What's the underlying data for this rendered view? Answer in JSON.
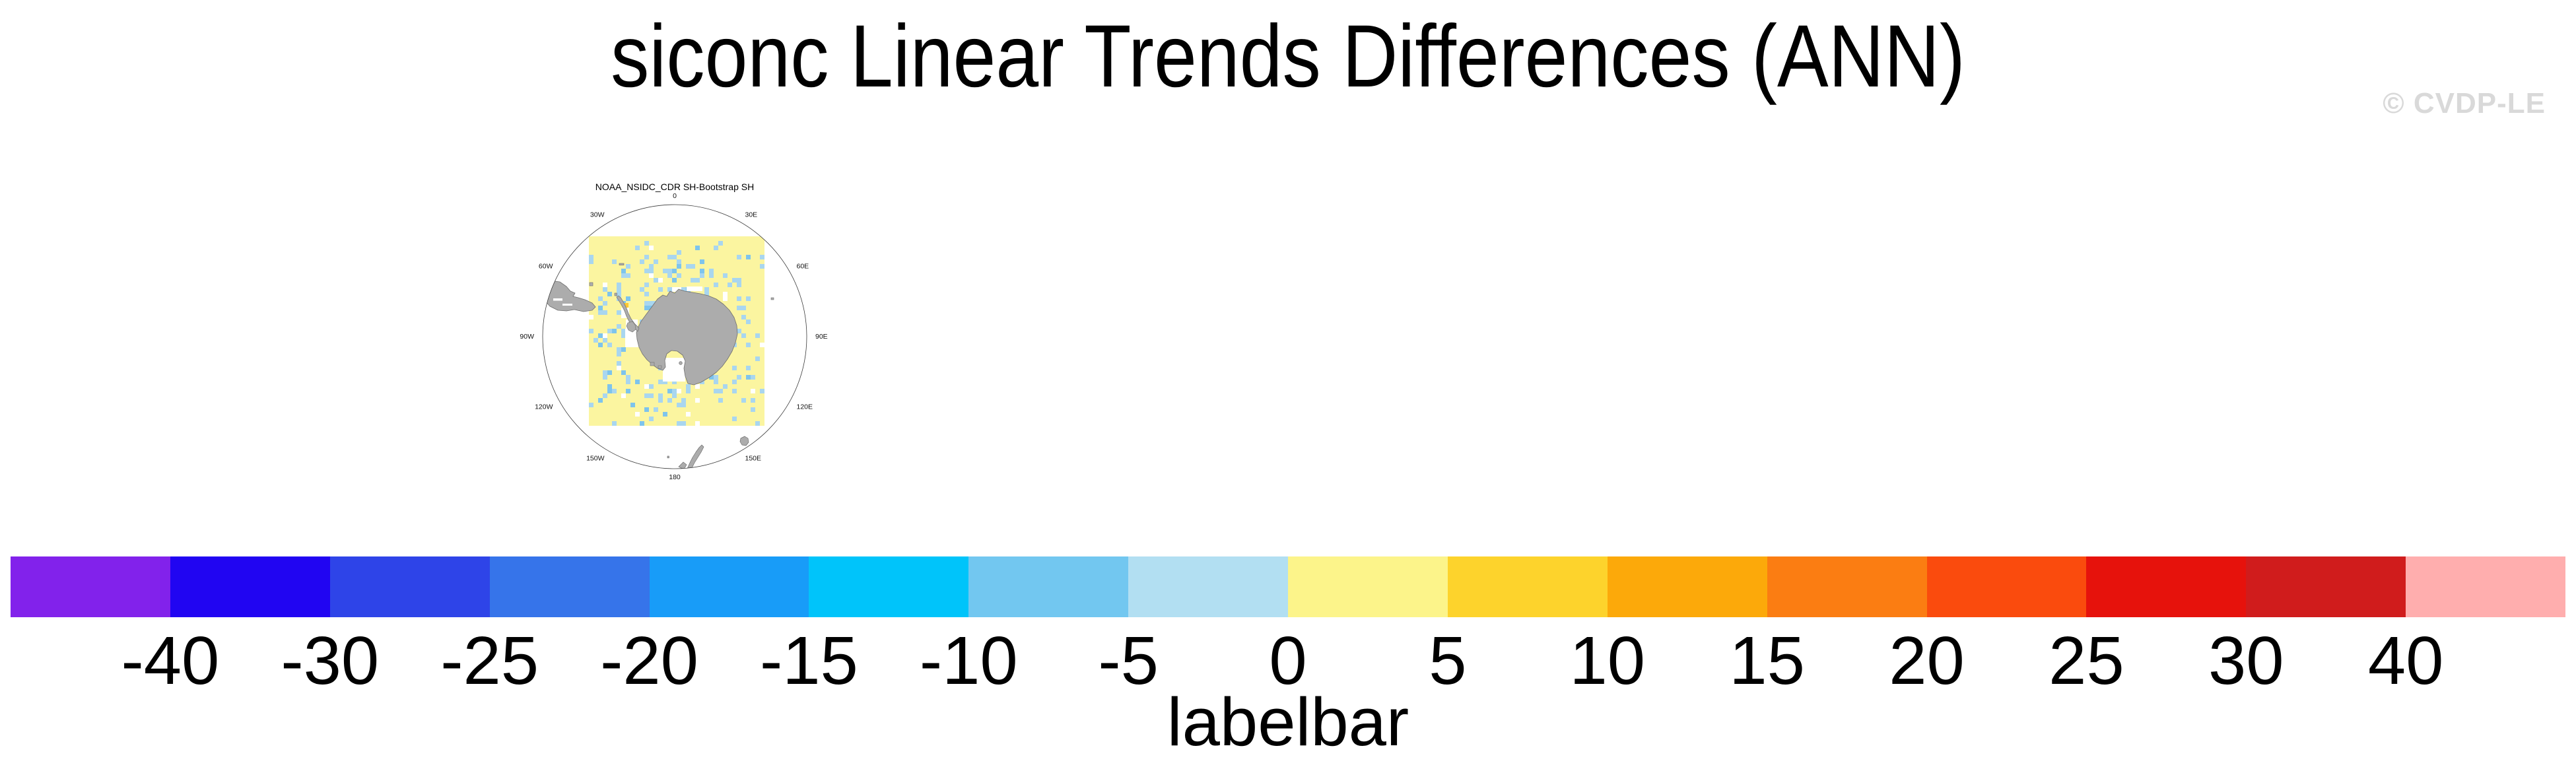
{
  "page": {
    "title": "siconc Linear Trends Differences (ANN)",
    "watermark": "© CVDP-LE"
  },
  "map": {
    "title": "NOAA_NSIDC_CDR SH-Bootstrap SH",
    "lon_labels": [
      {
        "text": "0",
        "angle": 0
      },
      {
        "text": "30E",
        "angle": 30
      },
      {
        "text": "60E",
        "angle": 60
      },
      {
        "text": "90E",
        "angle": 90
      },
      {
        "text": "120E",
        "angle": 120
      },
      {
        "text": "150E",
        "angle": 150
      },
      {
        "text": "180",
        "angle": 180
      },
      {
        "text": "150W",
        "angle": 210
      },
      {
        "text": "120W",
        "angle": 240
      },
      {
        "text": "90W",
        "angle": 270
      },
      {
        "text": "60W",
        "angle": 300
      },
      {
        "text": "30W",
        "angle": 330
      }
    ],
    "colors": {
      "field_fill": "#FBF5A0",
      "speckle_light": "#A9D6EF",
      "speckle_dark": "#7EC4EC",
      "speckle_amber": "#FCC832",
      "no_data": "#FFFFFF",
      "land": "#ACACAC",
      "land_outline": "#6F6F6F",
      "circle_outline": "#3A3A3A"
    }
  },
  "chart_data": {
    "type": "heatmap",
    "title": "siconc Linear Trends Differences (ANN)",
    "panel_title": "NOAA_NSIDC_CDR SH-Bootstrap SH",
    "projection": "south-polar-stereographic",
    "lon_ticks": [
      "0",
      "30E",
      "60E",
      "90E",
      "120E",
      "150E",
      "180",
      "150W",
      "120W",
      "90W",
      "60W",
      "30W"
    ],
    "colorbar": {
      "caption": "labelbar",
      "tick_labels": [
        "-40",
        "-30",
        "-25",
        "-20",
        "-15",
        "-10",
        "-5",
        "0",
        "5",
        "10",
        "15",
        "20",
        "25",
        "30",
        "40"
      ],
      "bin_colors": [
        "#8222EB",
        "#2105F2",
        "#2E44E8",
        "#3674EA",
        "#189CF8",
        "#00C4FA",
        "#72C7F0",
        "#B2DFF2",
        "#FCF48A",
        "#FDD32C",
        "#FCA90A",
        "#FB7D12",
        "#FA4B0D",
        "#E6120C",
        "#D01C1C",
        "#FFAEAE"
      ],
      "legend_position": "bottom"
    },
    "map_reading": {
      "dominant_field_bin": "0 to 5",
      "speckle_bins": [
        "-5 to 0",
        "-10 to -5"
      ],
      "isolated_positive_cell_bin": "5 to 10",
      "region": "Southern Hemisphere sea-ice zone around Antarctica"
    }
  }
}
